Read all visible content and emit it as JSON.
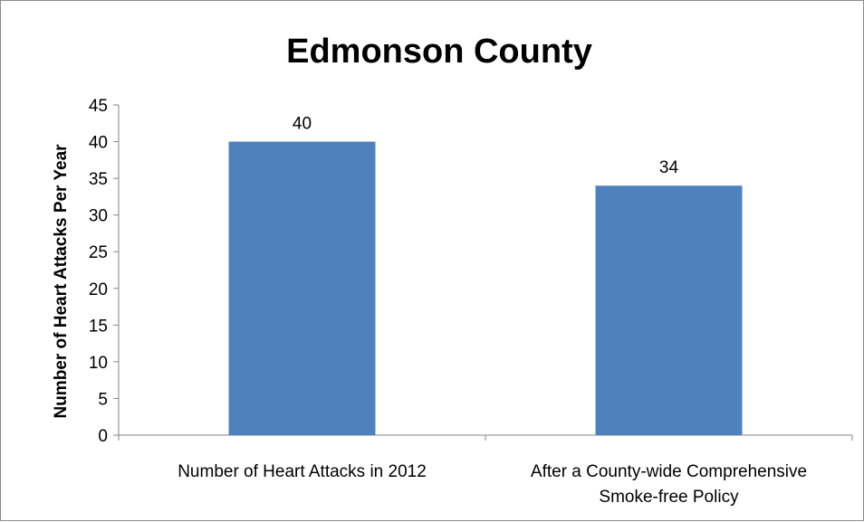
{
  "chart_data": {
    "type": "bar",
    "title": "Edmonson County",
    "xlabel": "",
    "ylabel": "Number of Heart Attacks Per Year",
    "categories": [
      [
        "Number of Heart Attacks in 2012"
      ],
      [
        "After a County-wide Comprehensive",
        "Smoke-free Policy"
      ]
    ],
    "values": [
      40,
      34
    ],
    "data_labels": [
      "40",
      "34"
    ],
    "ylim": [
      0,
      45
    ],
    "yticks": [
      "0",
      "5",
      "10",
      "15",
      "20",
      "25",
      "30",
      "35",
      "40",
      "45"
    ],
    "bar_color": "#4f81bd",
    "grid": false,
    "legend": "none"
  }
}
